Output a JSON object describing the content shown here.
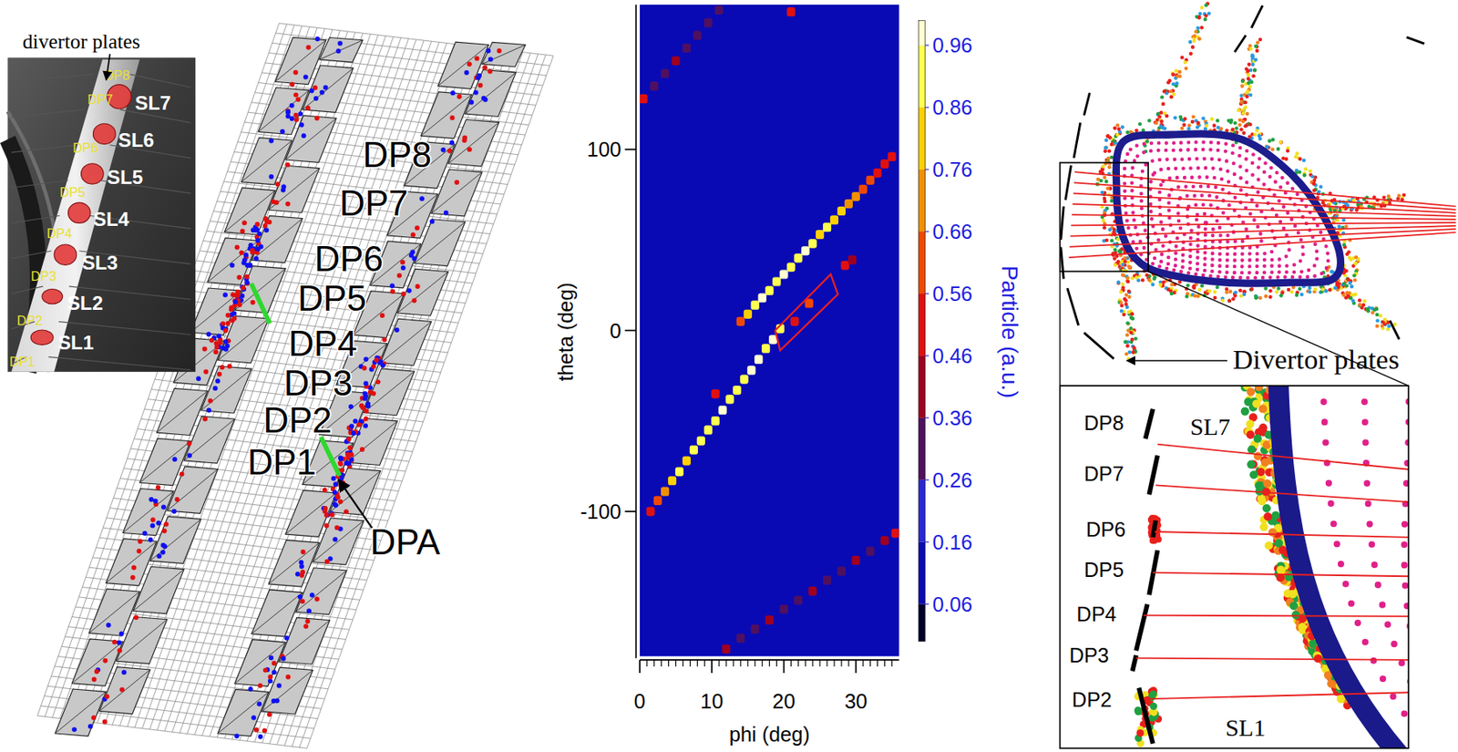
{
  "photo": {
    "caption": "divertor plates",
    "plate_labels": [
      "DP8",
      "DP7",
      "DP6",
      "DP5",
      "DP4",
      "DP3",
      "DP2",
      "DP1"
    ],
    "sightline_labels": [
      "SL7",
      "SL6",
      "SL5",
      "SL4",
      "SL3",
      "SL2",
      "SL1"
    ]
  },
  "plates_3d": {
    "plate_labels": [
      "DP8",
      "DP7",
      "DP6",
      "DP5",
      "DP4",
      "DP3",
      "DP2",
      "DP1"
    ],
    "region_label": "DPA"
  },
  "chart_data": {
    "type": "heatmap",
    "xlabel": "phi (deg)",
    "ylabel": "theta (deg)",
    "xlim": [
      0,
      36
    ],
    "ylim": [
      -180,
      180
    ],
    "xticks": [
      0,
      10,
      20,
      30
    ],
    "x_minor_ticks": [
      1,
      2,
      3,
      4,
      5,
      6,
      7,
      8,
      9,
      11,
      12,
      13,
      14,
      15,
      16,
      17,
      18,
      19,
      21,
      22,
      23,
      24,
      25,
      26,
      27,
      28,
      29,
      31,
      32,
      33,
      34,
      35
    ],
    "yticks": [
      -100,
      0,
      100
    ],
    "color": "#0a0ab4",
    "cells": [
      [
        1.5,
        -100,
        0.46
      ],
      [
        2.5,
        -94,
        0.56
      ],
      [
        3.5,
        -89,
        0.66
      ],
      [
        4.5,
        -83,
        0.76
      ],
      [
        5.5,
        -78,
        0.86
      ],
      [
        6.5,
        -72,
        0.76
      ],
      [
        7.5,
        -66,
        0.86
      ],
      [
        8.5,
        -61,
        0.9
      ],
      [
        9.5,
        -55,
        0.86
      ],
      [
        10.5,
        -50,
        0.9
      ],
      [
        11.5,
        -44,
        0.96
      ],
      [
        12.5,
        -38,
        0.9
      ],
      [
        13.5,
        -33,
        0.86
      ],
      [
        14.5,
        -27,
        0.9
      ],
      [
        15.5,
        -22,
        0.96
      ],
      [
        16.5,
        -16,
        0.96
      ],
      [
        17.5,
        -10,
        0.9
      ],
      [
        18.5,
        -5,
        0.96
      ],
      [
        19.5,
        1,
        0.86
      ],
      [
        21.5,
        5,
        0.46
      ],
      [
        23.5,
        15,
        0.56
      ],
      [
        14,
        5,
        0.56
      ],
      [
        15,
        9,
        0.76
      ],
      [
        16,
        14,
        0.9
      ],
      [
        17,
        18,
        0.96
      ],
      [
        18,
        22,
        0.86
      ],
      [
        19,
        27,
        0.9
      ],
      [
        20,
        31,
        0.96
      ],
      [
        21,
        35,
        0.86
      ],
      [
        22,
        40,
        0.9
      ],
      [
        23,
        44,
        0.96
      ],
      [
        24,
        48,
        0.86
      ],
      [
        25,
        53,
        0.8
      ],
      [
        26,
        57,
        0.86
      ],
      [
        27,
        61,
        0.76
      ],
      [
        28,
        66,
        0.8
      ],
      [
        29,
        70,
        0.7
      ],
      [
        30,
        74,
        0.66
      ],
      [
        31,
        78,
        0.6
      ],
      [
        32,
        83,
        0.56
      ],
      [
        33,
        87,
        0.5
      ],
      [
        34,
        92,
        0.46
      ],
      [
        35,
        96,
        0.46
      ],
      [
        10.5,
        -35,
        0.46
      ],
      [
        28.5,
        36,
        0.46
      ],
      [
        29.5,
        39,
        0.36
      ],
      [
        0.5,
        128,
        0.46
      ],
      [
        21,
        176,
        0.46
      ],
      [
        35.5,
        -112,
        0.46
      ],
      [
        2,
        135,
        0.26
      ],
      [
        3.5,
        142,
        0.26
      ],
      [
        5,
        149,
        0.36
      ],
      [
        6.5,
        156,
        0.26
      ],
      [
        8,
        163,
        0.26
      ],
      [
        9.5,
        170,
        0.26
      ],
      [
        11,
        177,
        0.26
      ],
      [
        12,
        -176,
        0.36
      ],
      [
        14,
        -170,
        0.26
      ],
      [
        16,
        -165,
        0.26
      ],
      [
        18,
        -160,
        0.36
      ],
      [
        20,
        -154,
        0.26
      ],
      [
        22,
        -149,
        0.26
      ],
      [
        24,
        -144,
        0.36
      ],
      [
        26,
        -138,
        0.26
      ],
      [
        28,
        -133,
        0.26
      ],
      [
        30,
        -127,
        0.36
      ],
      [
        32,
        -122,
        0.26
      ],
      [
        34,
        -116,
        0.36
      ]
    ],
    "box": [
      [
        19.5,
        -11
      ],
      [
        27.5,
        20
      ],
      [
        26.5,
        31
      ],
      [
        18.8,
        0
      ]
    ],
    "colorbar": {
      "label": "Particle (a.u.)",
      "range": [
        0,
        1
      ],
      "ticks": [
        0.06,
        0.16,
        0.26,
        0.36,
        0.46,
        0.56,
        0.66,
        0.76,
        0.86,
        0.96
      ],
      "levels": [
        0,
        0.06,
        0.16,
        0.26,
        0.36,
        0.46,
        0.56,
        0.66,
        0.76,
        0.86,
        0.96,
        1
      ],
      "colors": [
        "#00002a",
        "#0a0ab4",
        "#2828d4",
        "#501060",
        "#a00020",
        "#e01010",
        "#f04800",
        "#f09000",
        "#ffd000",
        "#ffff50",
        "#ffffd0"
      ]
    }
  },
  "poincare": {
    "label": "Divertor plates",
    "plate_labels": [
      "DP8",
      "DP7",
      "DP6",
      "DP5",
      "DP4",
      "DP3",
      "DP2"
    ],
    "sightline_labels": [
      "SL7",
      "SL1"
    ]
  }
}
